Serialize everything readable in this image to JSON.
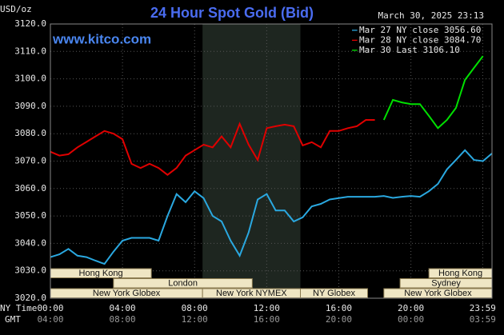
{
  "chart_data": {
    "type": "line",
    "title": "24 Hour Spot Gold (Bid)",
    "date": "March 30, 2025 23:13",
    "source": "www.kitco.com",
    "ylabel": "USD/oz",
    "xlabel": "NY Time",
    "x2label": "GMT",
    "xlim": [
      0,
      24.5
    ],
    "ylim": [
      3020,
      3120
    ],
    "yticks": [
      {
        "value": 3020,
        "label": "3020.0"
      },
      {
        "value": 3030,
        "label": "3030.0"
      },
      {
        "value": 3040,
        "label": "3040.0"
      },
      {
        "value": 3050,
        "label": "3050.0"
      },
      {
        "value": 3060,
        "label": "3060.0"
      },
      {
        "value": 3070,
        "label": "3070.0"
      },
      {
        "value": 3080,
        "label": "3080.0"
      },
      {
        "value": 3090,
        "label": "3090.0"
      },
      {
        "value": 3100,
        "label": "3100.0"
      },
      {
        "value": 3110,
        "label": "3110.0"
      },
      {
        "value": 3120,
        "label": "3120.0"
      }
    ],
    "xticks": [
      {
        "value": 0,
        "label": "00:00"
      },
      {
        "value": 4,
        "label": "04:00"
      },
      {
        "value": 8,
        "label": "08:00"
      },
      {
        "value": 12,
        "label": "12:00"
      },
      {
        "value": 16,
        "label": "16:00"
      },
      {
        "value": 20,
        "label": "20:00"
      },
      {
        "value": 23.983,
        "label": "23:59"
      }
    ],
    "xticks_gmt": [
      "04:00",
      "08:00",
      "12:00",
      "16:00",
      "20:00",
      "00:00",
      "03:59"
    ],
    "grid": true,
    "x": [
      0,
      0.5,
      1,
      1.5,
      2,
      2.5,
      3,
      3.5,
      4,
      4.5,
      5,
      5.5,
      6,
      6.5,
      7,
      7.5,
      8,
      8.5,
      9,
      9.5,
      10,
      10.5,
      11,
      11.5,
      12,
      12.5,
      13,
      13.5,
      14,
      14.5,
      15,
      15.5,
      16,
      16.5,
      17,
      17.5,
      18,
      18.5,
      19,
      19.5,
      20,
      20.5,
      21,
      21.5,
      22,
      22.5,
      23,
      23.5,
      24,
      24.5
    ],
    "series": [
      {
        "name": "Mar 27 NY close 3056.60",
        "color": "#2aa8e0",
        "values": [
          3035,
          3036,
          3038,
          3035.5,
          3035,
          3033.7,
          3032.5,
          3037,
          3041,
          3042,
          3042,
          3042,
          3041,
          3050,
          3058,
          3055,
          3059,
          3056.5,
          3050,
          3048,
          3041,
          3035.5,
          3044,
          3056,
          3058,
          3052,
          3052,
          3048,
          3049.5,
          3053.5,
          3054.4,
          3056,
          3056.5,
          3057,
          3057,
          3057,
          3057,
          3057.3,
          3056.6,
          3057,
          3057.3,
          3057,
          3059,
          3061.7,
          3067,
          3070.4,
          3074,
          3070.4,
          3070,
          3072.8
        ]
      },
      {
        "name": "Mar 28 NY close 3084.70",
        "color": "#e00000",
        "values": [
          3073.4,
          3072,
          3072.5,
          3075,
          3077,
          3079,
          3081,
          3080,
          3078,
          3069,
          3067.5,
          3069,
          3067.5,
          3065,
          3067.5,
          3072,
          3074,
          3076,
          3075,
          3079,
          3075,
          3083.6,
          3076,
          3070.4,
          3082,
          3082.7,
          3083.3,
          3082.7,
          3075.7,
          3076.9,
          3075,
          3081,
          3081,
          3082,
          3082.7,
          3085,
          3085,
          null,
          null,
          null,
          null,
          null,
          null,
          null,
          null,
          null,
          null,
          null,
          null,
          null
        ]
      },
      {
        "name": "Mar 30 Last 3106.10",
        "color": "#00e000",
        "values": [
          null,
          null,
          null,
          null,
          null,
          null,
          null,
          null,
          null,
          null,
          null,
          null,
          null,
          null,
          null,
          null,
          null,
          null,
          null,
          null,
          null,
          null,
          null,
          null,
          null,
          null,
          null,
          null,
          null,
          null,
          null,
          null,
          null,
          null,
          null,
          null,
          null,
          3085,
          3092.3,
          3091.4,
          3090.8,
          3090.8,
          3086.5,
          3082,
          3085,
          3089.4,
          3099.6,
          3104,
          3108.3,
          null
        ]
      }
    ],
    "sessions": [
      [
        {
          "name": "Hong Kong",
          "start": 0,
          "end": 5.6
        },
        {
          "name": "Hong Kong",
          "start": 21,
          "end": 24.5
        }
      ],
      [
        {
          "name": "London",
          "start": 3.5,
          "end": 11.2
        },
        {
          "name": "Sydney",
          "start": 19.4,
          "end": 24.5
        }
      ],
      [
        {
          "name": "New York Globex",
          "start": 0,
          "end": 8.44
        },
        {
          "name": "New York NYMEX",
          "start": 8.44,
          "end": 13.87,
          "shaded": true
        },
        {
          "name": "NY Globex",
          "start": 13.87,
          "end": 17.6
        },
        {
          "name": "New York Globex",
          "start": 18.5,
          "end": 24.5
        }
      ]
    ]
  }
}
